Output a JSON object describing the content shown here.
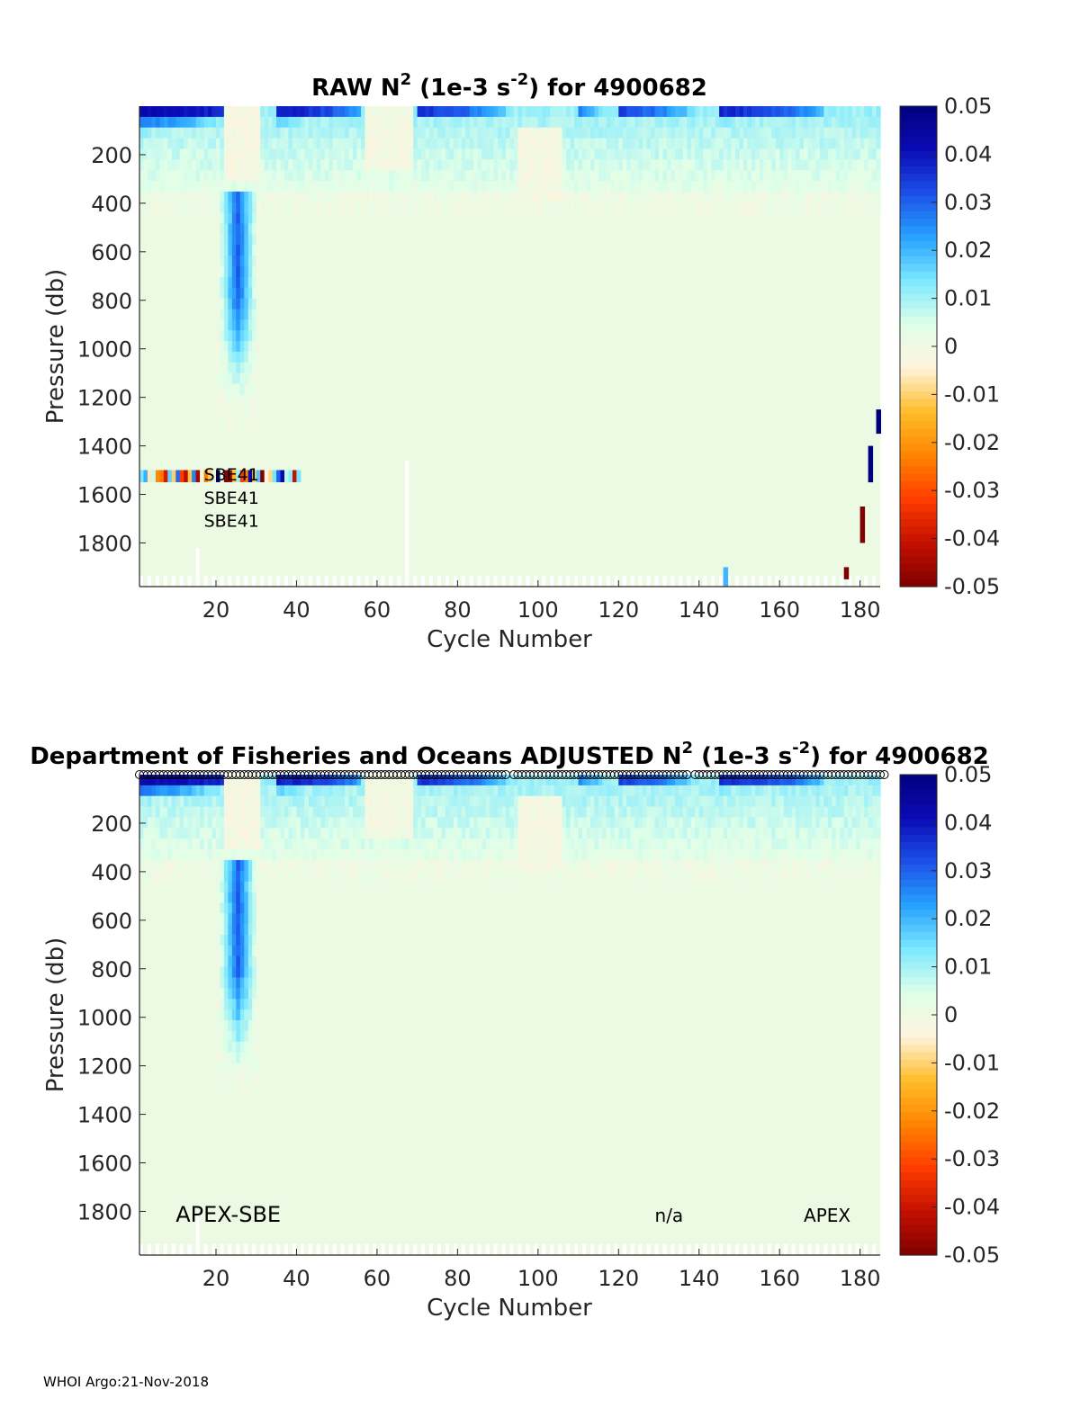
{
  "footer": "WHOI Argo:21-Nov-2018",
  "colormap": [
    "#7f0000",
    "#c41000",
    "#ff3c00",
    "#ff8500",
    "#ffbd2a",
    "#fff3dd",
    "#dfffe8",
    "#7ce8ff",
    "#27a1ff",
    "#1c50e8",
    "#0b0bb5",
    "#00007f"
  ],
  "chart_data": [
    {
      "type": "heatmap",
      "title": "RAW N",
      "title_sup": "2",
      "title_mid": " (1e-3 s",
      "title_sup2": "-2",
      "title_end": ") for 4900682",
      "xlabel": "Cycle Number",
      "ylabel": "Pressure (db)",
      "xlim": [
        1,
        185
      ],
      "ylim": [
        1980,
        0
      ],
      "xticks": [
        20,
        40,
        60,
        80,
        100,
        120,
        140,
        160,
        180
      ],
      "yticks": [
        200,
        400,
        600,
        800,
        1000,
        1200,
        1400,
        1600,
        1800
      ],
      "colorbar": {
        "min": -0.05,
        "max": 0.05,
        "ticks": [
          "0.05",
          "0.04",
          "0.03",
          "0.02",
          "0.01",
          "0",
          "-0.01",
          "-0.02",
          "-0.03",
          "-0.04",
          "-0.05"
        ]
      },
      "annotations": [
        {
          "text": "SBE41",
          "x": 17,
          "y": 1510
        },
        {
          "text": "SBE41",
          "x": 17,
          "y": 1605
        },
        {
          "text": "SBE41",
          "x": 17,
          "y": 1700
        }
      ],
      "data_summary": {
        "surface_strong_stratification_cycles": [
          [
            1,
            30
          ],
          [
            35,
            55
          ],
          [
            70,
            92
          ],
          [
            110,
            120
          ],
          [
            120,
            140
          ],
          [
            145,
            170
          ]
        ],
        "deep_maximum": {
          "cycles": [
            21,
            29
          ],
          "pressure": [
            350,
            1200
          ],
          "value": 0.025
        },
        "background_value": 0.0005,
        "raw_outliers": [
          {
            "cycle": 184,
            "pressure": [
              1250,
              1350
            ],
            "value": 0.05
          },
          {
            "cycle": 182,
            "pressure": [
              1400,
              1550
            ],
            "value": 0.05
          },
          {
            "cycle": 180,
            "pressure": [
              1650,
              1800
            ],
            "value": -0.05
          },
          {
            "cycle": 176,
            "pressure": [
              1900,
              1950
            ],
            "value": -0.05
          },
          {
            "cycle": 146,
            "pressure": [
              1900,
              1980
            ],
            "value": 0.02
          }
        ],
        "sensor_row": {
          "pressure": 1520,
          "cycles": [
            1,
            40
          ]
        }
      }
    },
    {
      "type": "heatmap",
      "title_prefix": "Department of Fisheries and Oceans  ADJUSTED N",
      "title_sup": "2",
      "title_mid": " (1e-3 s",
      "title_sup2": "-2",
      "title_end": ") for 4900682",
      "xlabel": "Cycle Number",
      "ylabel": "Pressure (db)",
      "xlim": [
        1,
        185
      ],
      "ylim": [
        1980,
        0
      ],
      "xticks": [
        20,
        40,
        60,
        80,
        100,
        120,
        140,
        160,
        180
      ],
      "yticks": [
        200,
        400,
        600,
        800,
        1000,
        1200,
        1400,
        1600,
        1800
      ],
      "colorbar": {
        "min": -0.05,
        "max": 0.05,
        "ticks": [
          "0.05",
          "0.04",
          "0.03",
          "0.02",
          "0.01",
          "0",
          "-0.01",
          "-0.02",
          "-0.03",
          "-0.04",
          "-0.05"
        ]
      },
      "annotations": [
        {
          "text": "APEX-SBE",
          "x": 10,
          "y": 1810
        },
        {
          "text": "n/a",
          "x": 129,
          "y": 1810
        },
        {
          "text": "APEX",
          "x": 166,
          "y": 1810
        }
      ]
    }
  ]
}
